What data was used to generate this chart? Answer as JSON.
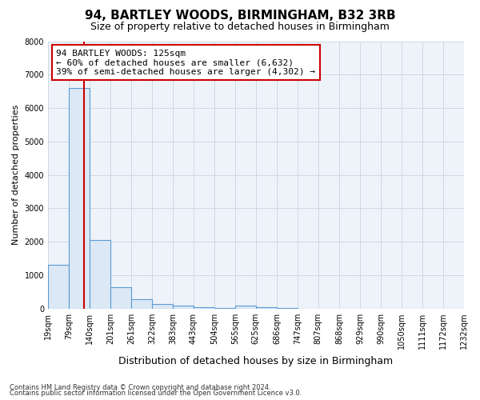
{
  "title1": "94, BARTLEY WOODS, BIRMINGHAM, B32 3RB",
  "title2": "Size of property relative to detached houses in Birmingham",
  "xlabel": "Distribution of detached houses by size in Birmingham",
  "ylabel": "Number of detached properties",
  "footnote1": "Contains HM Land Registry data © Crown copyright and database right 2024.",
  "footnote2": "Contains public sector information licensed under the Open Government Licence v3.0.",
  "annotation_line1": "94 BARTLEY WOODS: 125sqm",
  "annotation_line2": "← 60% of detached houses are smaller (6,632)",
  "annotation_line3": "39% of semi-detached houses are larger (4,302) →",
  "property_size": 125,
  "bin_edges": [
    19,
    79,
    140,
    201,
    261,
    322,
    383,
    443,
    504,
    565,
    625,
    686,
    747,
    807,
    868,
    929,
    990,
    1050,
    1111,
    1172,
    1232
  ],
  "bin_heights": [
    1300,
    6600,
    2050,
    650,
    280,
    130,
    80,
    50,
    15,
    80,
    50,
    10,
    5,
    5,
    3,
    2,
    2,
    2,
    1,
    1
  ],
  "bar_facecolor": "#dce8f5",
  "bar_edgecolor": "#5b9bd5",
  "vline_color": "#cc0000",
  "annotation_box_edgecolor": "#cc0000",
  "fig_background": "#ffffff",
  "plot_background": "#eef3fa",
  "grid_color": "#c8d4e0",
  "ylim": [
    0,
    8000
  ],
  "yticks": [
    0,
    1000,
    2000,
    3000,
    4000,
    5000,
    6000,
    7000,
    8000
  ],
  "title1_fontsize": 11,
  "title2_fontsize": 9,
  "ylabel_fontsize": 8,
  "xlabel_fontsize": 9,
  "tick_fontsize": 7,
  "annotation_fontsize": 8,
  "footnote_fontsize": 6
}
